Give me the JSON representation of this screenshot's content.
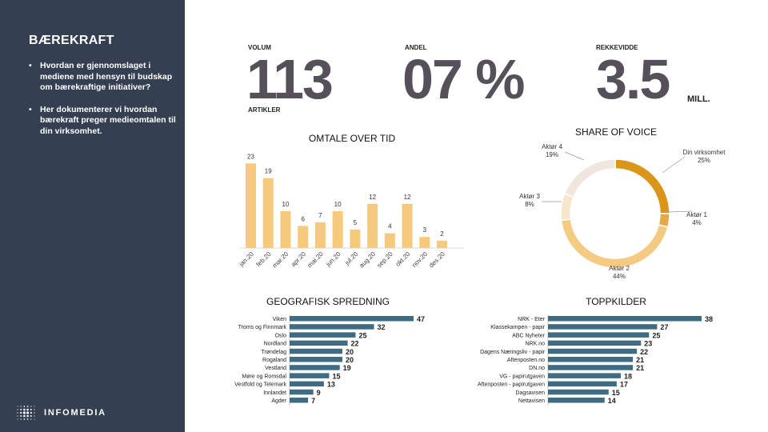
{
  "sidebar": {
    "title": "BÆREKRAFT",
    "bullets": [
      "Hvordan er gjennomslaget i mediene med hensyn til budskap om bærekraftige initiativer?",
      "Her dokumenterer vi hvordan bærekraft preger medieomtalen til din virksomhet."
    ],
    "logo_text": "INFOMEDIA"
  },
  "kpis": {
    "volum": {
      "label": "VOLUM",
      "value": "113",
      "sub": "ARTIKLER"
    },
    "andel": {
      "label": "ANDEL",
      "value": "07 %"
    },
    "rekkevidde": {
      "label": "REKKEVIDDE",
      "value": "3.5",
      "unit": "MILL."
    }
  },
  "colors": {
    "sidebar": "#343f52",
    "bar_gold": "#f5c97e",
    "bar_blue": "#3f6c80",
    "donut": [
      "#d9961a",
      "#e8a84a",
      "#f5cb84",
      "#f7e6cc",
      "#efe7de"
    ]
  },
  "chart_data": [
    {
      "type": "bar",
      "title": "OMTALE OVER TID",
      "categories": [
        "jan.20",
        "feb.20",
        "mar.20",
        "apr.20",
        "mai.20",
        "jun.20",
        "jul.20",
        "aug.20",
        "sep.20",
        "okt.20",
        "nov.20",
        "des.20"
      ],
      "values": [
        23,
        19,
        10,
        6,
        7,
        10,
        5,
        12,
        4,
        12,
        3,
        2
      ],
      "ylim": [
        0,
        25
      ]
    },
    {
      "type": "pie",
      "title": "SHARE OF VOICE",
      "labels": [
        "Din virksomhet",
        "Aktør 1",
        "Aktør 2",
        "Aktør 3",
        "Aktør 4"
      ],
      "values": [
        25,
        4,
        44,
        8,
        19
      ],
      "value_labels": [
        "25%",
        "4%",
        "44%",
        "8%",
        "19%"
      ]
    },
    {
      "type": "bar",
      "orientation": "horizontal",
      "title": "GEOGRAFISK SPREDNING",
      "categories": [
        "Viken",
        "Troms og Finnmark",
        "Oslo",
        "Nordland",
        "Trøndelag",
        "Rogaland",
        "Vestland",
        "Møre og Romsdal",
        "Vestfold og Telemark",
        "Innlandet",
        "Agder"
      ],
      "values": [
        47,
        32,
        25,
        22,
        20,
        20,
        19,
        15,
        13,
        9,
        7
      ],
      "xlim": [
        0,
        47
      ]
    },
    {
      "type": "bar",
      "orientation": "horizontal",
      "title": "TOPPKILDER",
      "categories": [
        "NRK - Eter",
        "Klassekampen - papir",
        "ABC Nyheter",
        "NRK.no",
        "Dagens Næringsliv - papir",
        "Aftenposten.no",
        "DN.no",
        "VG - papirutgaven",
        "Aftenposten - papirutgaven",
        "Dagsavisen",
        "Nettavisen"
      ],
      "values": [
        38,
        27,
        25,
        23,
        22,
        21,
        21,
        18,
        17,
        15,
        14
      ],
      "xlim": [
        0,
        38
      ]
    }
  ]
}
